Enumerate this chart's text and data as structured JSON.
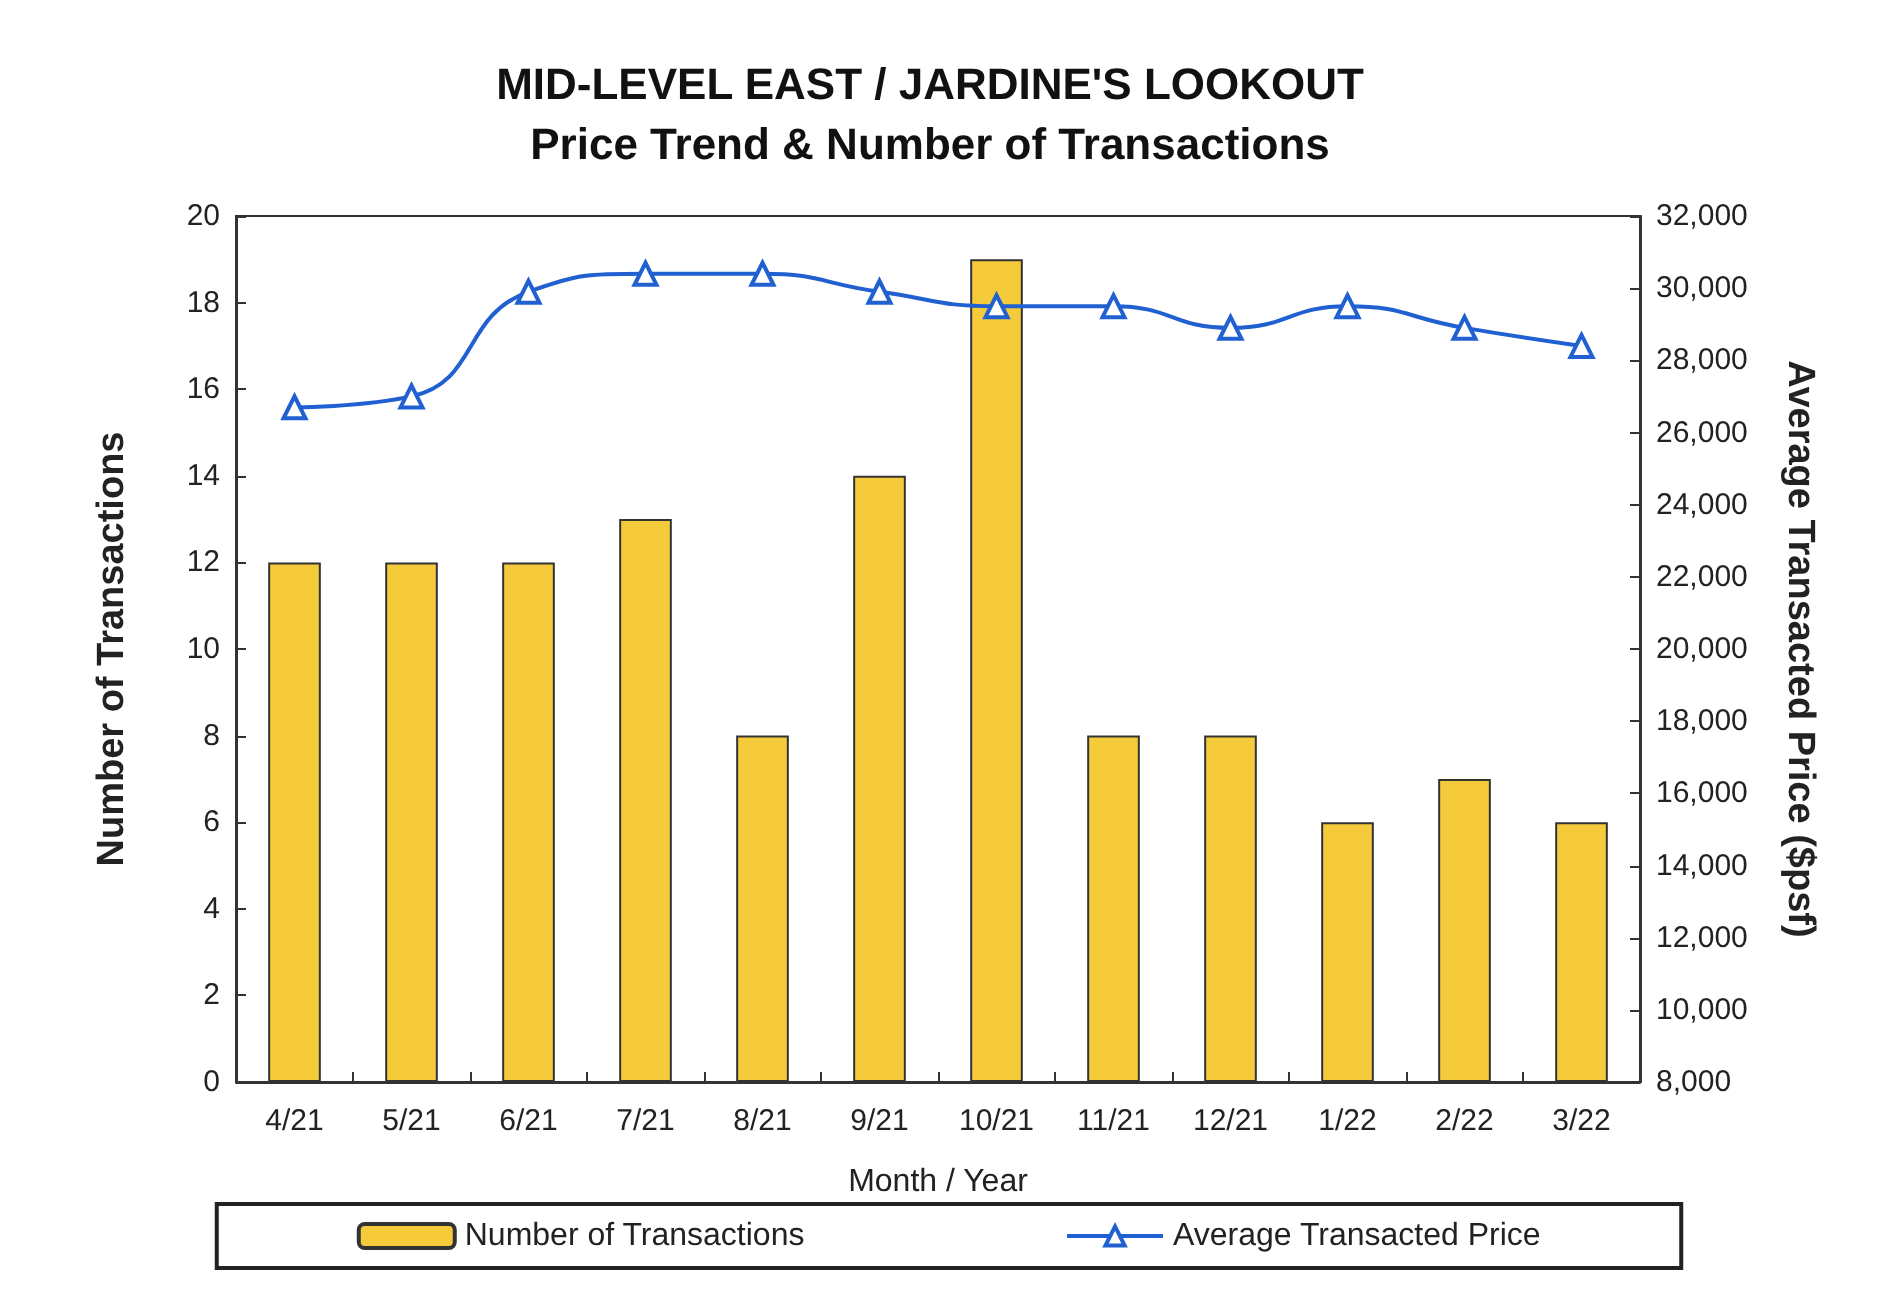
{
  "chart_data": {
    "type": "bar",
    "title": "MID-LEVEL EAST / JARDINE'S LOOKOUT",
    "subtitle": "Price Trend & Number of Transactions",
    "xlabel": "Month / Year",
    "ylabel": "Number of Transactions",
    "y2label": "Average Transacted Price ($psf)",
    "categories": [
      "4/21",
      "5/21",
      "6/21",
      "7/21",
      "8/21",
      "9/21",
      "10/21",
      "11/21",
      "12/21",
      "1/22",
      "2/22",
      "3/22"
    ],
    "series": [
      {
        "name": "Number of Transactions",
        "color": "#f5cb3c",
        "values": [
          12,
          12,
          12,
          13,
          8,
          14,
          19,
          8,
          8,
          6,
          7,
          6
        ]
      },
      {
        "name": "Average Transacted Price",
        "type": "line",
        "axis": "y2",
        "color": "#2060d0",
        "marker": "triangle",
        "values": [
          26700,
          27000,
          29900,
          30400,
          30400,
          29900,
          29500,
          29500,
          28900,
          29500,
          28900,
          28400
        ]
      }
    ],
    "ylim": [
      0,
      20
    ],
    "yticks": [
      0,
      2,
      4,
      6,
      8,
      10,
      12,
      14,
      16,
      18,
      20
    ],
    "y2lim": [
      8000,
      32000
    ],
    "y2ticks": [
      {
        "value": 8000,
        "label": "8,000"
      },
      {
        "value": 10000,
        "label": "10,000"
      },
      {
        "value": 12000,
        "label": "12,000"
      },
      {
        "value": 14000,
        "label": "14,000"
      },
      {
        "value": 16000,
        "label": "16,000"
      },
      {
        "value": 18000,
        "label": "18,000"
      },
      {
        "value": 20000,
        "label": "20,000"
      },
      {
        "value": 22000,
        "label": "22,000"
      },
      {
        "value": 24000,
        "label": "24,000"
      },
      {
        "value": 26000,
        "label": "26,000"
      },
      {
        "value": 28000,
        "label": "28,000"
      },
      {
        "value": 30000,
        "label": "30,000"
      },
      {
        "value": 32000,
        "label": "32,000"
      }
    ],
    "grid": false,
    "legend": "bottom"
  }
}
